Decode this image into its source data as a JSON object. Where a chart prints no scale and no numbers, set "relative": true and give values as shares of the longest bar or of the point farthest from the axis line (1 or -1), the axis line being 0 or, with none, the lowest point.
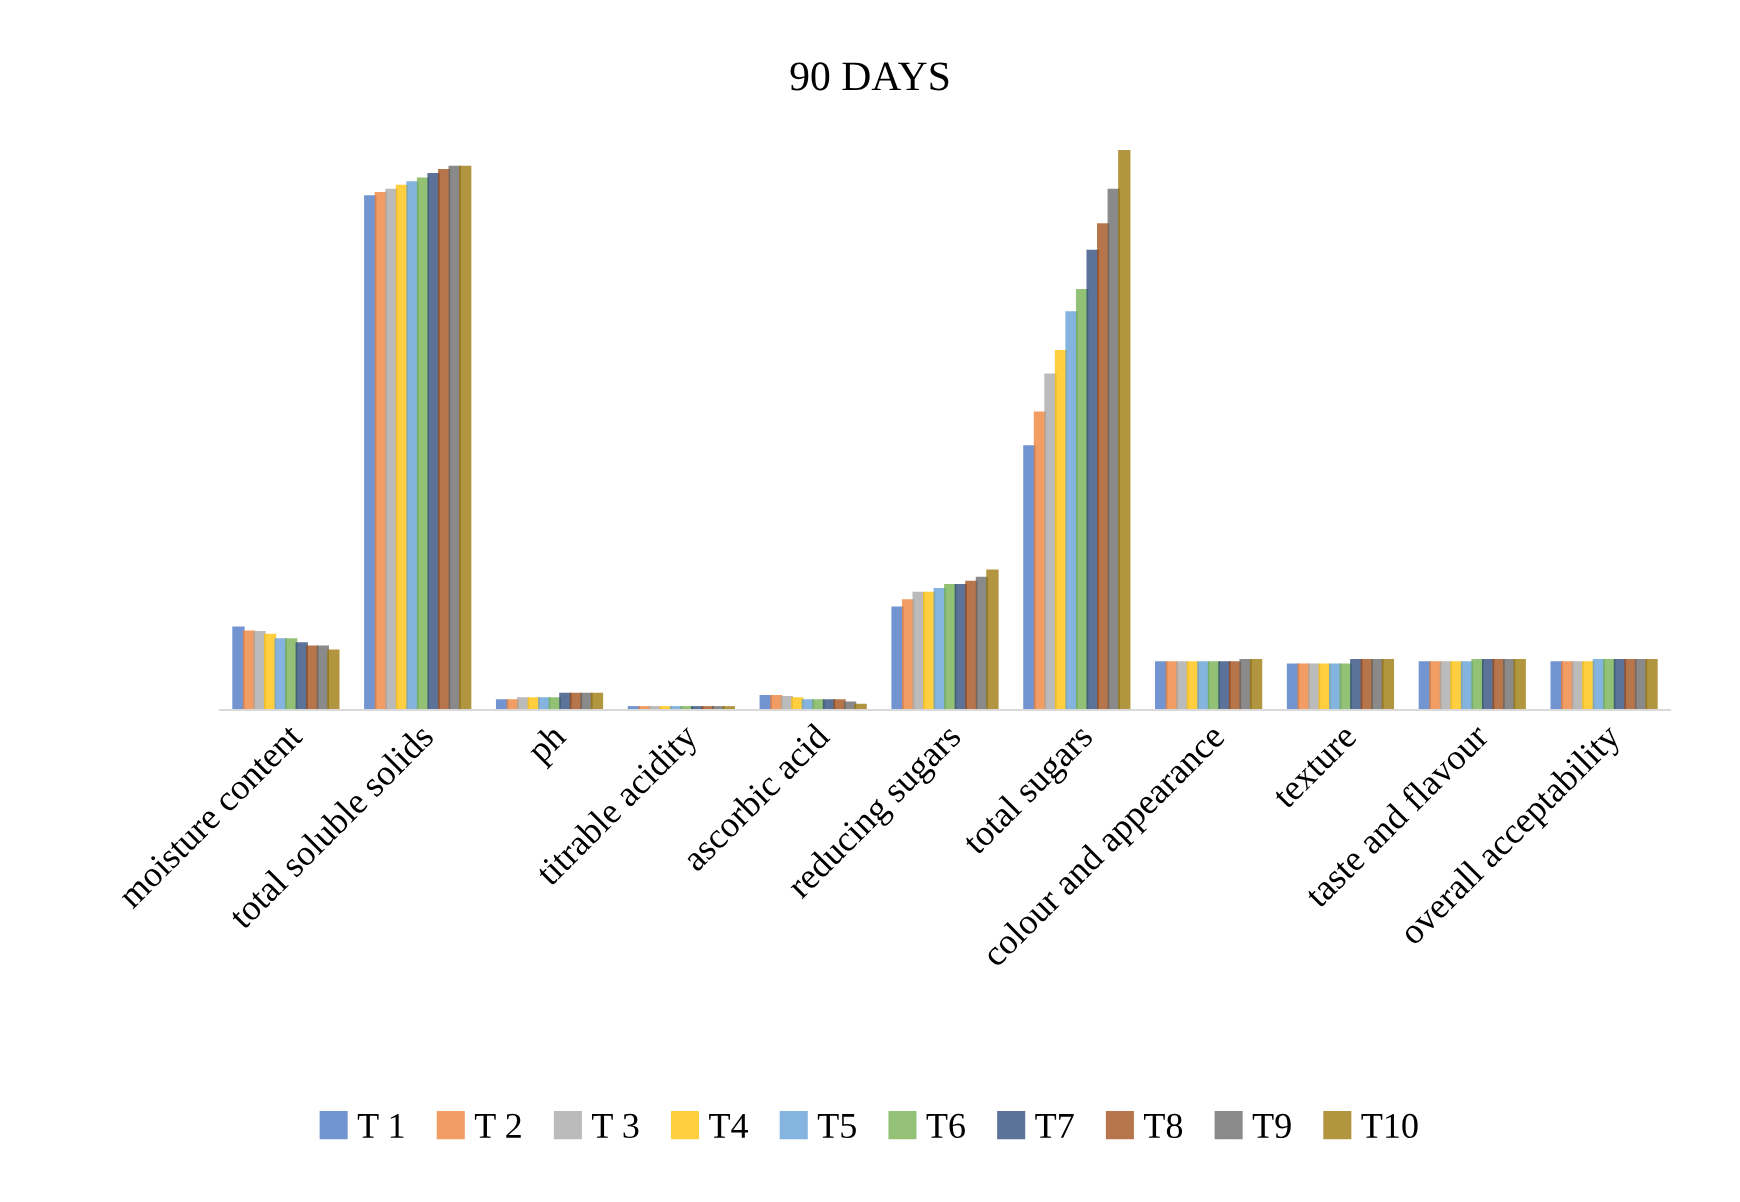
{
  "chart_data": {
    "type": "bar",
    "title": "90 DAYS",
    "relative": true,
    "legend": "bottom",
    "grid": false,
    "categories": [
      "moisture content",
      "total soluble solids",
      "ph",
      "titrable acidity",
      "ascorbic acid",
      "reducing sugars",
      "total sugars",
      "colour and appearance",
      "texture",
      "taste and flavour",
      "overall acceptability"
    ],
    "series": [
      {
        "name": "T 1",
        "color": "#4472c4",
        "values": [
          0.146,
          0.916,
          0.016,
          0.004,
          0.024,
          0.182,
          0.47,
          0.084,
          0.08,
          0.084,
          0.084
        ]
      },
      {
        "name": "T 2",
        "color": "#ed7d31",
        "values": [
          0.139,
          0.922,
          0.016,
          0.004,
          0.024,
          0.195,
          0.53,
          0.084,
          0.08,
          0.084,
          0.084
        ]
      },
      {
        "name": "T 3",
        "color": "#a5a5a5",
        "values": [
          0.138,
          0.928,
          0.02,
          0.004,
          0.022,
          0.208,
          0.598,
          0.084,
          0.08,
          0.084,
          0.084
        ]
      },
      {
        "name": "T4",
        "color": "#ffc000",
        "values": [
          0.133,
          0.935,
          0.02,
          0.004,
          0.02,
          0.208,
          0.64,
          0.084,
          0.08,
          0.084,
          0.084
        ]
      },
      {
        "name": "T5",
        "color": "#5b9bd5",
        "values": [
          0.125,
          0.941,
          0.02,
          0.004,
          0.016,
          0.215,
          0.709,
          0.084,
          0.08,
          0.084,
          0.088
        ]
      },
      {
        "name": "T6",
        "color": "#70ad47",
        "values": [
          0.125,
          0.948,
          0.02,
          0.004,
          0.016,
          0.222,
          0.749,
          0.084,
          0.08,
          0.088,
          0.088
        ]
      },
      {
        "name": "T7",
        "color": "#264478",
        "values": [
          0.118,
          0.956,
          0.028,
          0.004,
          0.016,
          0.222,
          0.819,
          0.084,
          0.088,
          0.088,
          0.088
        ]
      },
      {
        "name": "T8",
        "color": "#9e480e",
        "values": [
          0.112,
          0.963,
          0.028,
          0.004,
          0.016,
          0.228,
          0.866,
          0.084,
          0.088,
          0.088,
          0.088
        ]
      },
      {
        "name": "T9",
        "color": "#636363",
        "values": [
          0.112,
          0.969,
          0.028,
          0.004,
          0.012,
          0.235,
          0.928,
          0.088,
          0.088,
          0.088,
          0.088
        ]
      },
      {
        "name": "T10",
        "color": "#997300",
        "values": [
          0.105,
          0.969,
          0.028,
          0.004,
          0.008,
          0.248,
          1.0,
          0.088,
          0.088,
          0.088,
          0.088
        ]
      }
    ]
  }
}
